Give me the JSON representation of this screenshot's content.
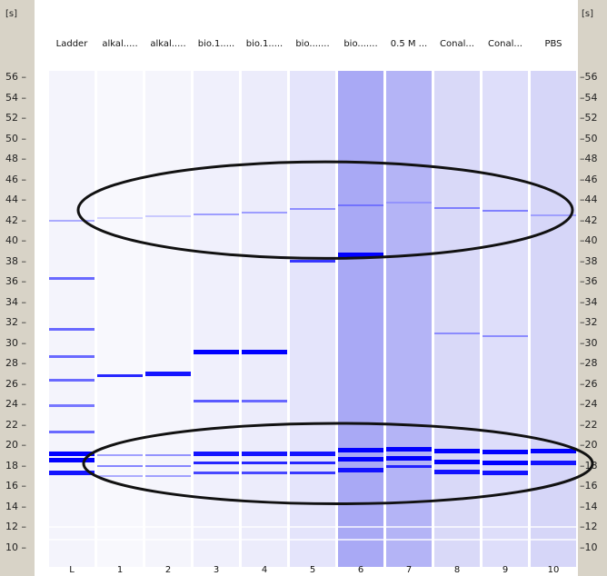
{
  "axis": {
    "unit": "[s]",
    "ticks": [
      56,
      54,
      52,
      50,
      48,
      46,
      44,
      42,
      40,
      38,
      36,
      34,
      32,
      30,
      28,
      26,
      24,
      22,
      20,
      18,
      16,
      14,
      12,
      10
    ]
  },
  "lanes": [
    {
      "label": "Ladder",
      "number": "L",
      "bg": "#f4f4fc",
      "bands": [
        {
          "s": 42.0,
          "i": 0.45
        },
        {
          "s": 36.3,
          "i": 0.7
        },
        {
          "s": 31.3,
          "i": 0.7
        },
        {
          "s": 28.7,
          "i": 0.7
        },
        {
          "s": 26.4,
          "i": 0.7
        },
        {
          "s": 23.9,
          "i": 0.65
        },
        {
          "s": 21.3,
          "i": 0.7
        },
        {
          "s": 19.2,
          "i": 1.0
        },
        {
          "s": 18.5,
          "i": 1.0
        },
        {
          "s": 17.3,
          "i": 0.95
        }
      ]
    },
    {
      "label": "alkal.....",
      "number": "1",
      "bg": "#f8f8fd",
      "bands": [
        {
          "s": 42.2,
          "i": 0.25
        },
        {
          "s": 26.8,
          "i": 0.9
        },
        {
          "s": 19.0,
          "i": 0.5
        },
        {
          "s": 18.0,
          "i": 0.6
        },
        {
          "s": 17.0,
          "i": 0.45
        }
      ]
    },
    {
      "label": "alkal.....",
      "number": "2",
      "bg": "#f5f5fc",
      "bands": [
        {
          "s": 42.4,
          "i": 0.3
        },
        {
          "s": 27.0,
          "i": 0.95
        },
        {
          "s": 19.0,
          "i": 0.55
        },
        {
          "s": 18.0,
          "i": 0.6
        },
        {
          "s": 17.0,
          "i": 0.5
        }
      ]
    },
    {
      "label": "bio.1.....",
      "number": "3",
      "bg": "#f0f0fc",
      "bands": [
        {
          "s": 42.6,
          "i": 0.5
        },
        {
          "s": 29.1,
          "i": 1.0
        },
        {
          "s": 24.3,
          "i": 0.75
        },
        {
          "s": 19.2,
          "i": 0.95
        },
        {
          "s": 18.3,
          "i": 0.9
        },
        {
          "s": 17.3,
          "i": 0.8
        }
      ]
    },
    {
      "label": "bio.1.....",
      "number": "4",
      "bg": "#ececfb",
      "bands": [
        {
          "s": 42.8,
          "i": 0.5
        },
        {
          "s": 29.1,
          "i": 1.0
        },
        {
          "s": 24.3,
          "i": 0.7
        },
        {
          "s": 19.2,
          "i": 0.95
        },
        {
          "s": 18.3,
          "i": 0.9
        },
        {
          "s": 17.3,
          "i": 0.8
        }
      ]
    },
    {
      "label": "bio.......",
      "number": "5",
      "bg": "#e4e4fb",
      "bands": [
        {
          "s": 43.1,
          "i": 0.55
        },
        {
          "s": 38.0,
          "i": 0.85
        },
        {
          "s": 19.2,
          "i": 0.95
        },
        {
          "s": 18.3,
          "i": 0.9
        },
        {
          "s": 17.3,
          "i": 0.85
        }
      ]
    },
    {
      "label": "bio.......",
      "number": "6",
      "bg": "#a9a9f5",
      "bands": [
        {
          "s": 43.5,
          "i": 0.6
        },
        {
          "s": 38.6,
          "i": 1.0
        },
        {
          "s": 19.5,
          "i": 1.0
        },
        {
          "s": 18.6,
          "i": 1.0
        },
        {
          "s": 17.6,
          "i": 0.95
        }
      ]
    },
    {
      "label": "0.5 M ...",
      "number": "7",
      "bg": "#b4b4f6",
      "bands": [
        {
          "s": 43.7,
          "i": 0.45
        },
        {
          "s": 19.6,
          "i": 1.0
        },
        {
          "s": 18.7,
          "i": 1.0
        },
        {
          "s": 17.9,
          "i": 0.9
        }
      ]
    },
    {
      "label": "Conal...",
      "number": "8",
      "bg": "#d9d9f8",
      "bands": [
        {
          "s": 43.2,
          "i": 0.6
        },
        {
          "s": 30.9,
          "i": 0.55
        },
        {
          "s": 19.4,
          "i": 1.0
        },
        {
          "s": 18.4,
          "i": 1.0
        },
        {
          "s": 17.4,
          "i": 0.95
        }
      ]
    },
    {
      "label": "Conal...",
      "number": "9",
      "bg": "#dedefa",
      "bands": [
        {
          "s": 42.9,
          "i": 0.6
        },
        {
          "s": 30.7,
          "i": 0.55
        },
        {
          "s": 19.3,
          "i": 1.0
        },
        {
          "s": 18.3,
          "i": 1.0
        },
        {
          "s": 17.3,
          "i": 0.95
        }
      ]
    },
    {
      "label": "PBS",
      "number": "10",
      "bg": "#d6d6f8",
      "bands": [
        {
          "s": 42.5,
          "i": 0.45
        },
        {
          "s": 19.4,
          "i": 1.0
        },
        {
          "s": 18.3,
          "i": 0.95
        }
      ]
    }
  ],
  "highlights": [
    {
      "center_s": 43.0,
      "span_s": 9.0
    },
    {
      "center_s": 18.2,
      "span_s": 7.5
    }
  ]
}
